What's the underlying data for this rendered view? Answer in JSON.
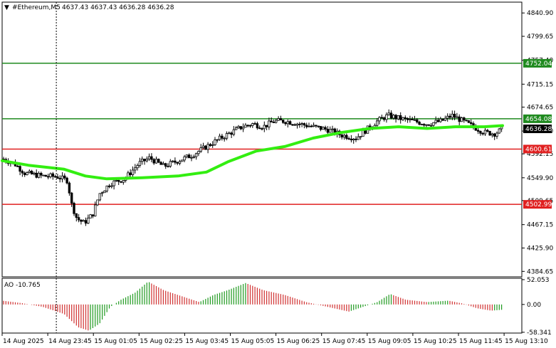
{
  "chart_data": {
    "type": "candlestick",
    "header": {
      "arrow": "▼",
      "symbol": "#Ethereum,M5",
      "ohlc": "4637.43 4637.43 4636.28 4636.28"
    },
    "price_axis": {
      "ylim": [
        4375,
        4860
      ],
      "ticks": [
        "4840.90",
        "4799.65",
        "4757.40",
        "4715.15",
        "4674.65",
        "4632.40",
        "4592.15",
        "4549.90",
        "4509.65",
        "4467.15",
        "4425.90",
        "4384.65"
      ]
    },
    "levels": [
      {
        "value": 4752.04,
        "label": "4752.04",
        "color": "#1f8a1f"
      },
      {
        "value": 4654.08,
        "label": "4654.08",
        "color": "#1f8a1f"
      },
      {
        "value": 4600.61,
        "label": "4600.61",
        "color": "#e02020"
      },
      {
        "value": 4502.99,
        "label": "4502.99",
        "color": "#e02020"
      }
    ],
    "current_price": {
      "value": 4636.28,
      "label": "4636.28"
    },
    "moving_average": {
      "color": "#33ee11"
    },
    "ao": {
      "label": "AO -10.765",
      "ylim": [
        -60,
        55
      ],
      "ticks": [
        "52.053",
        "0.00",
        "-58.341"
      ],
      "pos_color": "#1f9a1f",
      "neg_color": "#d03030"
    },
    "time_axis": {
      "ticks": [
        "14 Aug 2025",
        "14 Aug 23:45",
        "15 Aug 01:05",
        "15 Aug 02:25",
        "15 Aug 03:45",
        "15 Aug 05:05",
        "15 Aug 06:25",
        "15 Aug 07:45",
        "15 Aug 09:05",
        "15 Aug 10:25",
        "15 Aug 11:45",
        "15 Aug 13:10"
      ]
    },
    "cursor_tick_index": 1
  }
}
